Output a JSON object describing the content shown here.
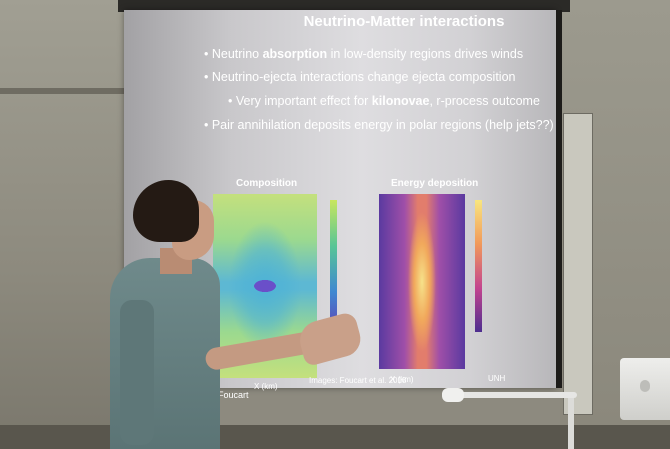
{
  "slide": {
    "title": "Neutrino-Matter interactions",
    "bullets": [
      {
        "prefix": "• Neutrino ",
        "bold": "absorption",
        "suffix": " in low-density regions drives winds"
      },
      {
        "prefix": "• Neutrino-ejecta interactions change ejecta composition",
        "bold": "",
        "suffix": ""
      },
      {
        "prefix": "• Very important effect for ",
        "bold": "kilonovae",
        "suffix": ", r-process outcome"
      },
      {
        "prefix": "• Pair annihilation deposits energy in polar regions (help jets??)",
        "bold": "",
        "suffix": ""
      }
    ],
    "panels": {
      "composition_title": "Composition",
      "energy_title": "Energy deposition",
      "composition_xlabel": "X (km)",
      "energy_xlabel": "X (km)"
    },
    "credit": "Images: Foucart et al. 2018",
    "logo_text": "UNH",
    "presenter_caption": "ois Foucart"
  },
  "colors": {
    "screen": "#dedde0",
    "wall": "#8d8a7f",
    "shirt": "#6f8a8b"
  }
}
